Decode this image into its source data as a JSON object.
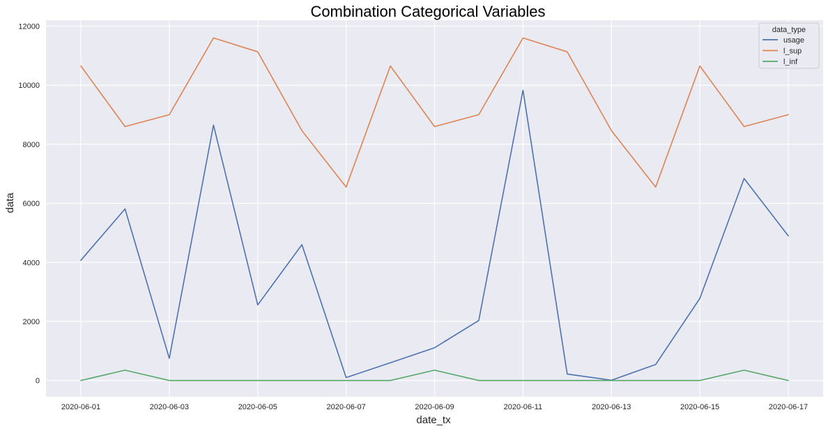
{
  "chart_data": {
    "type": "line",
    "title": "Combination Categorical Variables",
    "xlabel": "date_tx",
    "ylabel": "data",
    "x": [
      "2020-06-01",
      "2020-06-02",
      "2020-06-03",
      "2020-06-04",
      "2020-06-05",
      "2020-06-06",
      "2020-06-07",
      "2020-06-08",
      "2020-06-09",
      "2020-06-10",
      "2020-06-11",
      "2020-06-12",
      "2020-06-13",
      "2020-06-14",
      "2020-06-15",
      "2020-06-16",
      "2020-06-17"
    ],
    "x_tick_labels": [
      "2020-06-01",
      "2020-06-03",
      "2020-06-05",
      "2020-06-07",
      "2020-06-09",
      "2020-06-11",
      "2020-06-13",
      "2020-06-15",
      "2020-06-17"
    ],
    "y_ticks": [
      0,
      2000,
      4000,
      6000,
      8000,
      10000,
      12000
    ],
    "ylim": [
      -550,
      12200
    ],
    "grid": true,
    "background": "#eaeaf2",
    "legend": {
      "title": "data_type",
      "placement": "top-right"
    },
    "series": [
      {
        "name": "usage",
        "color": "#4c72b0",
        "values": [
          4070,
          5810,
          750,
          8650,
          2560,
          4600,
          100,
          600,
          1110,
          2030,
          9830,
          220,
          10,
          540,
          2780,
          6840,
          4900
        ]
      },
      {
        "name": "l_sup",
        "color": "#dd8452",
        "values": [
          10650,
          8600,
          9000,
          11600,
          11130,
          8460,
          6550,
          10650,
          8600,
          9000,
          11600,
          11130,
          8460,
          6550,
          10650,
          8600,
          9000
        ]
      },
      {
        "name": "l_inf",
        "color": "#55a868",
        "values": [
          0,
          350,
          0,
          0,
          0,
          0,
          0,
          0,
          350,
          0,
          0,
          0,
          0,
          0,
          0,
          350,
          0
        ]
      }
    ]
  }
}
